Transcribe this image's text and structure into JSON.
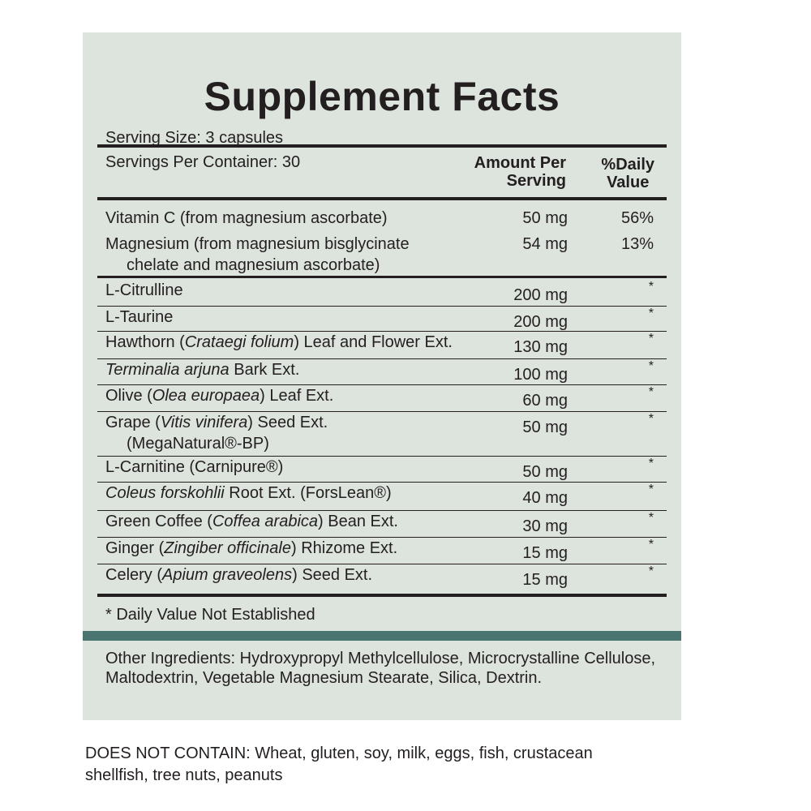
{
  "title": "Supplement Facts",
  "serving_size": "Serving Size: 3 capsules",
  "servings_per_container": "Servings Per Container: 30",
  "header": {
    "amount_line1": "Amount Per",
    "amount_line2": "Serving",
    "dv_line1": "%Daily",
    "dv_line2": "Value"
  },
  "rows": [
    {
      "name": "Vitamin C (from magnesium ascorbate)",
      "amount": "50 mg",
      "dv": "56%"
    },
    {
      "name": "Magnesium (from magnesium bisglycinate",
      "name_line2": "chelate and magnesium ascorbate)",
      "amount": "54 mg",
      "dv": "13%"
    },
    {
      "name": "L-Citrulline",
      "amount": "200 mg",
      "dv": "*"
    },
    {
      "name": "L-Taurine",
      "amount": "200 mg",
      "dv": "*"
    },
    {
      "name_pre": "Hawthorn (",
      "name_italic": "Crataegi folium",
      "name_post": ") Leaf and Flower Ext.",
      "amount": "130 mg",
      "dv": "*"
    },
    {
      "name_italic": "Terminalia arjuna",
      "name_post": " Bark Ext.",
      "amount": "100 mg",
      "dv": "*"
    },
    {
      "name_pre": "Olive (",
      "name_italic": "Olea europaea",
      "name_post": ") Leaf Ext.",
      "amount": "60 mg",
      "dv": "*"
    },
    {
      "name_pre": "Grape (",
      "name_italic": "Vitis vinifera",
      "name_post": ") Seed Ext.",
      "name_line2": "(MegaNatural®-BP)",
      "amount": "50 mg",
      "dv": "*"
    },
    {
      "name": "L-Carnitine (Carnipure®)",
      "amount": "50 mg",
      "dv": "*"
    },
    {
      "name_italic": "Coleus forskohlii",
      "name_post": " Root Ext. (ForsLean®)",
      "amount": "40 mg",
      "dv": "*"
    },
    {
      "name_pre": "Green Coffee (",
      "name_italic": "Coffea arabica",
      "name_post": ") Bean Ext.",
      "amount": "30 mg",
      "dv": "*"
    },
    {
      "name_pre": "Ginger (",
      "name_italic": "Zingiber officinale",
      "name_post": ") Rhizome Ext.",
      "amount": "15 mg",
      "dv": "*"
    },
    {
      "name_pre": "Celery (",
      "name_italic": "Apium graveolens",
      "name_post": ") Seed Ext.",
      "amount": "15 mg",
      "dv": "*"
    }
  ],
  "footnote": "* Daily Value Not Established",
  "other_ingredients": "Other Ingredients: Hydroxypropyl Methylcellulose, Microcrystalline Cellulose, Maltodextrin, Vegetable Magnesium Stearate, Silica, Dextrin.",
  "does_not_contain": "DOES NOT CONTAIN: Wheat, gluten, soy, milk, eggs, fish, crustacean shellfish, tree nuts, peanuts",
  "colors": {
    "panel": "#dde3dd",
    "accent_bar": "#4a7571",
    "text": "#231f20"
  }
}
